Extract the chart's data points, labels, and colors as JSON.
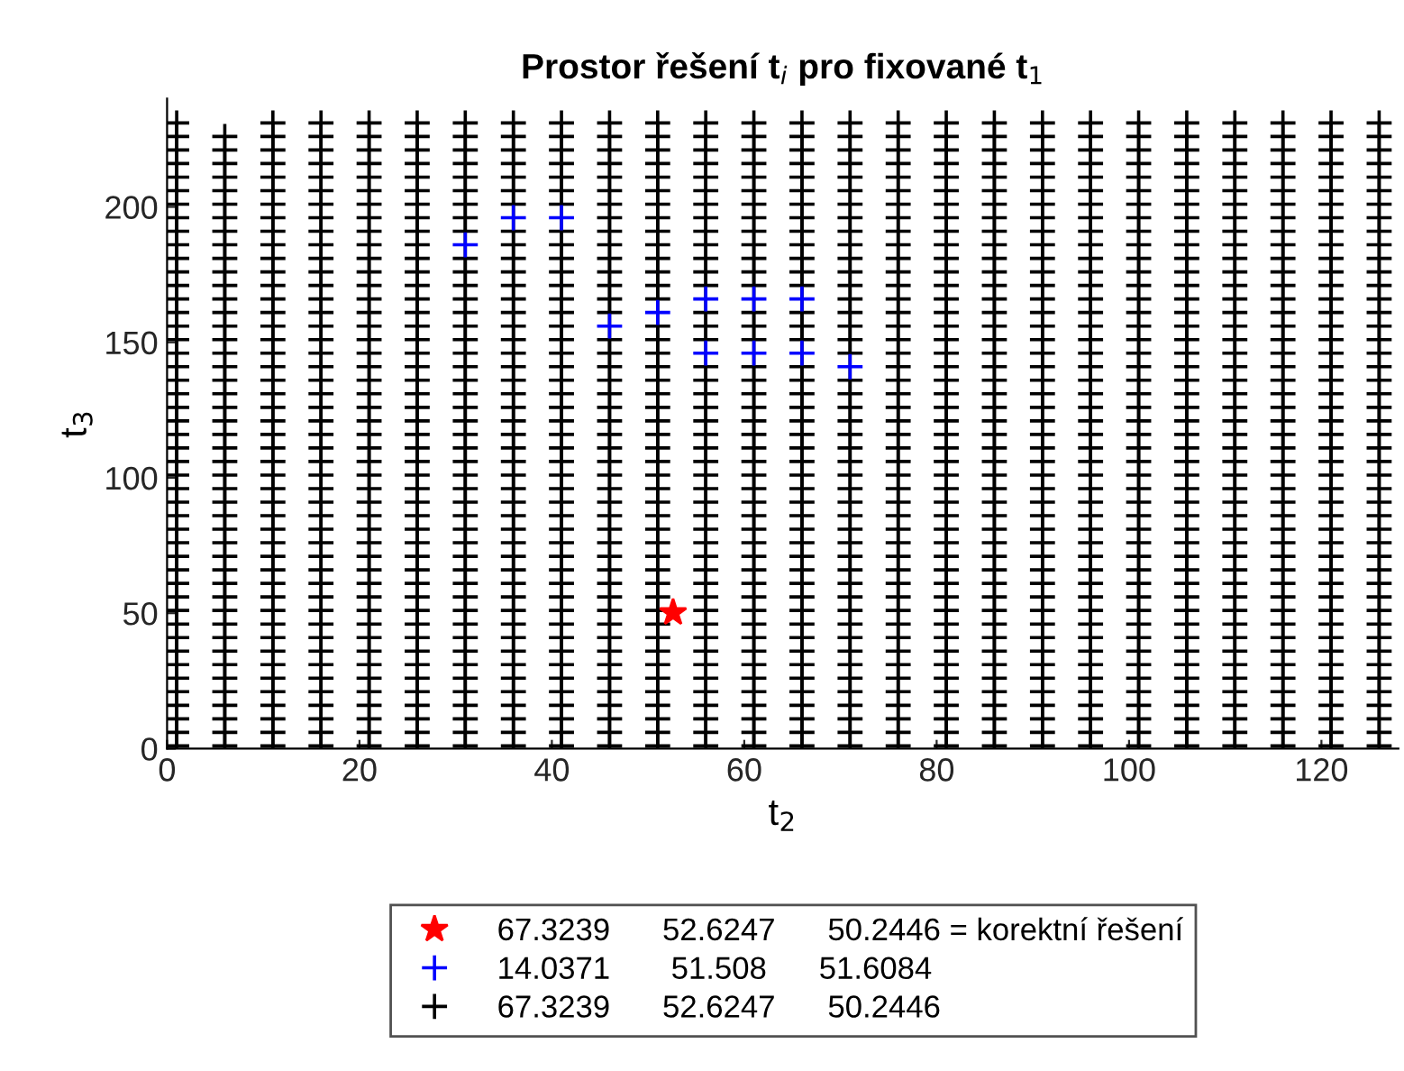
{
  "chart_data": {
    "type": "scatter",
    "title": "Prostor řešení t$_{i}$ pro fixované t$_{1}$",
    "xlabel": "t$_{2}$",
    "ylabel": "t$_{3}$",
    "xlim": [
      0,
      128
    ],
    "xticks": [
      0,
      20,
      40,
      60,
      80,
      100,
      120
    ],
    "ylim": [
      0,
      240
    ],
    "yticks": [
      0,
      50,
      100,
      150,
      200
    ],
    "grid": false,
    "legend": "bottom",
    "series": [
      {
        "name": "67.3239      52.6247      50.2446",
        "color": "#000000",
        "marker": "cross",
        "x": [
          1,
          1,
          1,
          1,
          1,
          1,
          1,
          1,
          1,
          1,
          1,
          1,
          1,
          1,
          1,
          1,
          1,
          1,
          1,
          1,
          1,
          1,
          1,
          1,
          1,
          1,
          1,
          1,
          1,
          1,
          1,
          1,
          1,
          1,
          1,
          1,
          1,
          1,
          1,
          1,
          1,
          1,
          1,
          1,
          1,
          1,
          1,
          6,
          6,
          6,
          6,
          6,
          6,
          6,
          6,
          6,
          6,
          6,
          6,
          6,
          6,
          6,
          6,
          6,
          6,
          6,
          6,
          6,
          6,
          6,
          6,
          6,
          6,
          6,
          6,
          6,
          6,
          6,
          6,
          6,
          6,
          6,
          6,
          6,
          6,
          6,
          6,
          6,
          6,
          6,
          6,
          6,
          6,
          11,
          11,
          11,
          11,
          11,
          11,
          11,
          11,
          11,
          11,
          11,
          11,
          11,
          11,
          11,
          11,
          11,
          11,
          11,
          11,
          11,
          11,
          11,
          11,
          11,
          11,
          11,
          11,
          11,
          11,
          11,
          11,
          11,
          11,
          11,
          11,
          11,
          11,
          11,
          11,
          11,
          11,
          11,
          11,
          11,
          11,
          11,
          16,
          16,
          16,
          16,
          16,
          16,
          16,
          16,
          16,
          16,
          16,
          16,
          16,
          16,
          16,
          16,
          16,
          16,
          16,
          16,
          16,
          16,
          16,
          16,
          16,
          16,
          16,
          16,
          16,
          16,
          16,
          16,
          16,
          16,
          16,
          16,
          16,
          16,
          16,
          16,
          16,
          16,
          16,
          16,
          16,
          16,
          16,
          21,
          21,
          21,
          21,
          21,
          21,
          21,
          21,
          21,
          21,
          21,
          21,
          21,
          21,
          21,
          21,
          21,
          21,
          21,
          21,
          21,
          21,
          21,
          21,
          21,
          21,
          21,
          21,
          21,
          21,
          21,
          21,
          21,
          21,
          21,
          21,
          21,
          21,
          21,
          21,
          21,
          21,
          21,
          21,
          21,
          21,
          21,
          26,
          26,
          26,
          26,
          26,
          26,
          26,
          26,
          26,
          26,
          26,
          26,
          26,
          26,
          26,
          26,
          26,
          26,
          26,
          26,
          26,
          26,
          26,
          26,
          26,
          26,
          26,
          26,
          26,
          26,
          26,
          26,
          26,
          26,
          26,
          26,
          26,
          26,
          26,
          26,
          26,
          26,
          26,
          26,
          26,
          26,
          26,
          31,
          31,
          31,
          31,
          31,
          31,
          31,
          31,
          31,
          31,
          31,
          31,
          31,
          31,
          31,
          31,
          31,
          31,
          31,
          31,
          31,
          31,
          31,
          31,
          31,
          31,
          31,
          31,
          31,
          31,
          31,
          31,
          31,
          31,
          31,
          31,
          31,
          null,
          31,
          31,
          31,
          31,
          31,
          31,
          31,
          31,
          31,
          36,
          36,
          36,
          36,
          36,
          36,
          36,
          36,
          36,
          36,
          36,
          36,
          36,
          36,
          36,
          36,
          36,
          36,
          36,
          36,
          36,
          36,
          36,
          36,
          36,
          36,
          36,
          36,
          36,
          36,
          36,
          36,
          36,
          36,
          36,
          36,
          36,
          36,
          36,
          null,
          36,
          36,
          36,
          36,
          36,
          36,
          36,
          41,
          41,
          41,
          41,
          41,
          41,
          41,
          41,
          41,
          41,
          41,
          41,
          41,
          41,
          41,
          41,
          41,
          41,
          41,
          41,
          41,
          41,
          41,
          41,
          41,
          41,
          41,
          41,
          41,
          41,
          41,
          41,
          41,
          41,
          41,
          41,
          41,
          41,
          41,
          null,
          41,
          41,
          41,
          41,
          41,
          41,
          41,
          46,
          46,
          46,
          46,
          46,
          46,
          46,
          46,
          46,
          46,
          46,
          46,
          46,
          46,
          46,
          46,
          46,
          46,
          46,
          46,
          46,
          46,
          46,
          46,
          46,
          46,
          46,
          46,
          46,
          46,
          46,
          null,
          46,
          46,
          46,
          46,
          46,
          46,
          46,
          46,
          46,
          46,
          46,
          46,
          46,
          46,
          46,
          51,
          51,
          51,
          51,
          51,
          51,
          51,
          51,
          51,
          51,
          51,
          51,
          51,
          51,
          51,
          51,
          51,
          51,
          51,
          51,
          51,
          51,
          51,
          51,
          51,
          51,
          51,
          51,
          51,
          51,
          51,
          51,
          null,
          51,
          51,
          51,
          51,
          51,
          51,
          51,
          51,
          51,
          51,
          51,
          51,
          51,
          51,
          56,
          56,
          56,
          56,
          56,
          56,
          56,
          56,
          56,
          56,
          56,
          56,
          56,
          56,
          56,
          56,
          56,
          56,
          56,
          56,
          56,
          56,
          56,
          56,
          56,
          56,
          56,
          56,
          56,
          null,
          56,
          56,
          56,
          null,
          56,
          56,
          56,
          56,
          56,
          56,
          56,
          56,
          56,
          56,
          56,
          56,
          56,
          61,
          61,
          61,
          61,
          61,
          61,
          61,
          61,
          61,
          61,
          61,
          61,
          61,
          61,
          61,
          61,
          61,
          61,
          61,
          61,
          61,
          61,
          61,
          61,
          61,
          61,
          61,
          61,
          61,
          null,
          61,
          61,
          61,
          null,
          61,
          61,
          61,
          61,
          61,
          61,
          61,
          61,
          61,
          61,
          61,
          61,
          61,
          66,
          66,
          66,
          66,
          66,
          66,
          66,
          66,
          66,
          66,
          66,
          66,
          66,
          66,
          66,
          66,
          66,
          66,
          66,
          66,
          66,
          66,
          66,
          66,
          66,
          66,
          66,
          66,
          66,
          null,
          66,
          66,
          66,
          null,
          66,
          66,
          66,
          66,
          66,
          66,
          66,
          66,
          66,
          66,
          66,
          66,
          66,
          71,
          71,
          71,
          71,
          71,
          71,
          71,
          71,
          71,
          71,
          71,
          71,
          71,
          71,
          71,
          71,
          71,
          71,
          71,
          71,
          71,
          71,
          71,
          71,
          71,
          71,
          71,
          71,
          null,
          71,
          71,
          71,
          71,
          71,
          71,
          71,
          71,
          71,
          71,
          71,
          71,
          71,
          71,
          71,
          71,
          71,
          71,
          76,
          76,
          76,
          76,
          76,
          76,
          76,
          76,
          76,
          76,
          76,
          76,
          76,
          76,
          76,
          76,
          76,
          76,
          76,
          76,
          76,
          76,
          76,
          76,
          76,
          76,
          76,
          76,
          76,
          76,
          76,
          76,
          76,
          76,
          76,
          76,
          76,
          76,
          76,
          76,
          76,
          76,
          76,
          76,
          76,
          76,
          76,
          81,
          81,
          81,
          81,
          81,
          81,
          81,
          81,
          81,
          81,
          81,
          81,
          81,
          81,
          81,
          81,
          81,
          81,
          81,
          81,
          81,
          81,
          81,
          81,
          81,
          81,
          81,
          81,
          81,
          81,
          81,
          81,
          81,
          81,
          81,
          81,
          81,
          81,
          81,
          81,
          81,
          81,
          81,
          81,
          81,
          81,
          81,
          86,
          86,
          86,
          86,
          86,
          86,
          86,
          86,
          86,
          86,
          86,
          86,
          86,
          86,
          86,
          86,
          86,
          86,
          86,
          86,
          86,
          86,
          86,
          86,
          86,
          86,
          86,
          86,
          86,
          86,
          86,
          86,
          86,
          86,
          86,
          86,
          86,
          86,
          86,
          86,
          86,
          86,
          86,
          86,
          86,
          86,
          86,
          91,
          91,
          91,
          91,
          91,
          91,
          91,
          91,
          91,
          91,
          91,
          91,
          91,
          91,
          91,
          91,
          91,
          91,
          91,
          91,
          91,
          91,
          91,
          91,
          91,
          91,
          91,
          91,
          91,
          91,
          91,
          91,
          91,
          91,
          91,
          91,
          91,
          91,
          91,
          91,
          91,
          91,
          91,
          91,
          91,
          91,
          91,
          96,
          96,
          96,
          96,
          96,
          96,
          96,
          96,
          96,
          96,
          96,
          96,
          96,
          96,
          96,
          96,
          96,
          96,
          96,
          96,
          96,
          96,
          96,
          96,
          96,
          96,
          96,
          96,
          96,
          96,
          96,
          96,
          96,
          96,
          96,
          96,
          96,
          96,
          96,
          96,
          96,
          96,
          96,
          96,
          96,
          96,
          96,
          101,
          101,
          101,
          101,
          101,
          101,
          101,
          101,
          101,
          101,
          101,
          101,
          101,
          101,
          101,
          101,
          101,
          101,
          101,
          101,
          101,
          101,
          101,
          101,
          101,
          101,
          101,
          101,
          101,
          101,
          101,
          101,
          101,
          101,
          101,
          101,
          101,
          101,
          101,
          101,
          101,
          101,
          101,
          101,
          101,
          101,
          101,
          106,
          106,
          106,
          106,
          106,
          106,
          106,
          106,
          106,
          106,
          106,
          106,
          106,
          106,
          106,
          106,
          106,
          106,
          106,
          106,
          106,
          106,
          106,
          106,
          106,
          106,
          106,
          106,
          106,
          106,
          106,
          106,
          106,
          106,
          106,
          106,
          106,
          106,
          106,
          106,
          106,
          106,
          106,
          106,
          106,
          106,
          106,
          111,
          111,
          111,
          111,
          111,
          111,
          111,
          111,
          111,
          111,
          111,
          111,
          111,
          111,
          111,
          111,
          111,
          111,
          111,
          111,
          111,
          111,
          111,
          111,
          111,
          111,
          111,
          111,
          111,
          111,
          111,
          111,
          111,
          111,
          111,
          111,
          111,
          111,
          111,
          111,
          111,
          111,
          111,
          111,
          111,
          111,
          111,
          116,
          116,
          116,
          116,
          116,
          116,
          116,
          116,
          116,
          116,
          116,
          116,
          116,
          116,
          116,
          116,
          116,
          116,
          116,
          116,
          116,
          116,
          116,
          116,
          116,
          116,
          116,
          116,
          116,
          116,
          116,
          116,
          116,
          116,
          116,
          116,
          116,
          116,
          116,
          116,
          116,
          116,
          116,
          116,
          116,
          116,
          116,
          121,
          121,
          121,
          121,
          121,
          121,
          121,
          121,
          121,
          121,
          121,
          121,
          121,
          121,
          121,
          121,
          121,
          121,
          121,
          121,
          121,
          121,
          121,
          121,
          121,
          121,
          121,
          121,
          121,
          121,
          121,
          121,
          121,
          121,
          121,
          121,
          121,
          121,
          121,
          121,
          121,
          121,
          121,
          121,
          121,
          121,
          121,
          126,
          126,
          126,
          126,
          126,
          126,
          126,
          126,
          126,
          126,
          126,
          126,
          126,
          126,
          126,
          126,
          126,
          126,
          126,
          126,
          126,
          126,
          126,
          126,
          126,
          126,
          126,
          126,
          126,
          126,
          126,
          126,
          126,
          126,
          126,
          126,
          126,
          126,
          126,
          126,
          126,
          126,
          126,
          126,
          126,
          126,
          126
        ],
        "values": [
          1,
          6,
          11,
          16,
          21,
          26,
          31,
          36,
          41,
          46,
          51,
          56,
          61,
          66,
          71,
          76,
          81,
          86,
          91,
          96,
          101,
          106,
          111,
          116,
          121,
          126,
          131,
          136,
          141,
          146,
          151,
          156,
          161,
          166,
          171,
          176,
          181,
          186,
          191,
          196,
          201,
          206,
          211,
          216,
          221,
          226,
          231,
          1,
          6,
          11,
          16,
          21,
          26,
          31,
          36,
          41,
          46,
          51,
          56,
          61,
          66,
          71,
          76,
          81,
          86,
          91,
          96,
          101,
          106,
          111,
          116,
          121,
          126,
          131,
          136,
          141,
          146,
          151,
          156,
          161,
          166,
          171,
          176,
          181,
          186,
          191,
          196,
          201,
          206,
          211,
          216,
          221,
          226,
          1,
          6,
          11,
          16,
          21,
          26,
          31,
          36,
          41,
          46,
          51,
          56,
          61,
          66,
          71,
          76,
          81,
          86,
          91,
          96,
          101,
          106,
          111,
          116,
          121,
          126,
          131,
          136,
          141,
          146,
          151,
          156,
          161,
          166,
          171,
          176,
          181,
          186,
          191,
          196,
          201,
          206,
          211,
          216,
          221,
          226,
          231,
          1,
          6,
          11,
          16,
          21,
          26,
          31,
          36,
          41,
          46,
          51,
          56,
          61,
          66,
          71,
          76,
          81,
          86,
          91,
          96,
          101,
          106,
          111,
          116,
          121,
          126,
          131,
          136,
          141,
          146,
          151,
          156,
          161,
          166,
          171,
          176,
          181,
          186,
          191,
          196,
          201,
          206,
          211,
          216,
          221,
          226,
          231,
          1,
          6,
          11,
          16,
          21,
          26,
          31,
          36,
          41,
          46,
          51,
          56,
          61,
          66,
          71,
          76,
          81,
          86,
          91,
          96,
          101,
          106,
          111,
          116,
          121,
          126,
          131,
          136,
          141,
          146,
          151,
          156,
          161,
          166,
          171,
          176,
          181,
          186,
          191,
          196,
          201,
          206,
          211,
          216,
          221,
          226,
          231,
          1,
          6,
          11,
          16,
          21,
          26,
          31,
          36,
          41,
          46,
          51,
          56,
          61,
          66,
          71,
          76,
          81,
          86,
          91,
          96,
          101,
          106,
          111,
          116,
          121,
          126,
          131,
          136,
          141,
          146,
          151,
          156,
          161,
          166,
          171,
          176,
          181,
          186,
          191,
          196,
          201,
          206,
          211,
          216,
          221,
          226,
          231,
          1,
          6,
          11,
          16,
          21,
          26,
          31,
          36,
          41,
          46,
          51,
          56,
          61,
          66,
          71,
          76,
          81,
          86,
          91,
          96,
          101,
          106,
          111,
          116,
          121,
          126,
          131,
          136,
          141,
          146,
          151,
          156,
          161,
          166,
          171,
          176,
          181,
          null,
          191,
          196,
          201,
          206,
          211,
          216,
          221,
          226,
          231,
          1,
          6,
          11,
          16,
          21,
          26,
          31,
          36,
          41,
          46,
          51,
          56,
          61,
          66,
          71,
          76,
          81,
          86,
          91,
          96,
          101,
          106,
          111,
          116,
          121,
          126,
          131,
          136,
          141,
          146,
          151,
          156,
          161,
          166,
          171,
          176,
          181,
          186,
          191,
          null,
          201,
          206,
          211,
          216,
          221,
          226,
          231,
          1,
          6,
          11,
          16,
          21,
          26,
          31,
          36,
          41,
          46,
          51,
          56,
          61,
          66,
          71,
          76,
          81,
          86,
          91,
          96,
          101,
          106,
          111,
          116,
          121,
          126,
          131,
          136,
          141,
          146,
          151,
          156,
          161,
          166,
          171,
          176,
          181,
          186,
          191,
          null,
          201,
          206,
          211,
          216,
          221,
          226,
          231,
          1,
          6,
          11,
          16,
          21,
          26,
          31,
          36,
          41,
          46,
          51,
          56,
          61,
          66,
          71,
          76,
          81,
          86,
          91,
          96,
          101,
          106,
          111,
          116,
          121,
          126,
          131,
          136,
          141,
          146,
          151,
          null,
          161,
          166,
          171,
          176,
          181,
          186,
          191,
          196,
          201,
          206,
          211,
          216,
          221,
          226,
          231,
          1,
          6,
          11,
          16,
          21,
          26,
          31,
          36,
          41,
          46,
          51,
          56,
          61,
          66,
          71,
          76,
          81,
          86,
          91,
          96,
          101,
          106,
          111,
          116,
          121,
          126,
          131,
          136,
          141,
          146,
          151,
          156,
          null,
          166,
          171,
          176,
          181,
          186,
          191,
          196,
          201,
          206,
          211,
          216,
          221,
          226,
          231,
          1,
          6,
          11,
          16,
          21,
          26,
          31,
          36,
          41,
          46,
          51,
          56,
          61,
          66,
          71,
          76,
          81,
          86,
          91,
          96,
          101,
          106,
          111,
          116,
          121,
          126,
          131,
          136,
          141,
          null,
          151,
          156,
          161,
          null,
          171,
          176,
          181,
          186,
          191,
          196,
          201,
          206,
          211,
          216,
          221,
          226,
          231,
          1,
          6,
          11,
          16,
          21,
          26,
          31,
          36,
          41,
          46,
          51,
          56,
          61,
          66,
          71,
          76,
          81,
          86,
          91,
          96,
          101,
          106,
          111,
          116,
          121,
          126,
          131,
          136,
          141,
          null,
          151,
          156,
          161,
          null,
          171,
          176,
          181,
          186,
          191,
          196,
          201,
          206,
          211,
          216,
          221,
          226,
          231,
          1,
          6,
          11,
          16,
          21,
          26,
          31,
          36,
          41,
          46,
          51,
          56,
          61,
          66,
          71,
          76,
          81,
          86,
          91,
          96,
          101,
          106,
          111,
          116,
          121,
          126,
          131,
          136,
          141,
          null,
          151,
          156,
          161,
          null,
          171,
          176,
          181,
          186,
          191,
          196,
          201,
          206,
          211,
          216,
          221,
          226,
          231,
          1,
          6,
          11,
          16,
          21,
          26,
          31,
          36,
          41,
          46,
          51,
          56,
          61,
          66,
          71,
          76,
          81,
          86,
          91,
          96,
          101,
          106,
          111,
          116,
          121,
          126,
          131,
          136,
          null,
          146,
          151,
          156,
          161,
          166,
          171,
          176,
          181,
          186,
          191,
          196,
          201,
          206,
          211,
          216,
          221,
          226,
          231,
          1,
          6,
          11,
          16,
          21,
          26,
          31,
          36,
          41,
          46,
          51,
          56,
          61,
          66,
          71,
          76,
          81,
          86,
          91,
          96,
          101,
          106,
          111,
          116,
          121,
          126,
          131,
          136,
          141,
          146,
          151,
          156,
          161,
          166,
          171,
          176,
          181,
          186,
          191,
          196,
          201,
          206,
          211,
          216,
          221,
          226,
          231,
          1,
          6,
          11,
          16,
          21,
          26,
          31,
          36,
          41,
          46,
          51,
          56,
          61,
          66,
          71,
          76,
          81,
          86,
          91,
          96,
          101,
          106,
          111,
          116,
          121,
          126,
          131,
          136,
          141,
          146,
          151,
          156,
          161,
          166,
          171,
          176,
          181,
          186,
          191,
          196,
          201,
          206,
          211,
          216,
          221,
          226,
          231,
          1,
          6,
          11,
          16,
          21,
          26,
          31,
          36,
          41,
          46,
          51,
          56,
          61,
          66,
          71,
          76,
          81,
          86,
          91,
          96,
          101,
          106,
          111,
          116,
          121,
          126,
          131,
          136,
          141,
          146,
          151,
          156,
          161,
          166,
          171,
          176,
          181,
          186,
          191,
          196,
          201,
          206,
          211,
          216,
          221,
          226,
          231,
          1,
          6,
          11,
          16,
          21,
          26,
          31,
          36,
          41,
          46,
          51,
          56,
          61,
          66,
          71,
          76,
          81,
          86,
          91,
          96,
          101,
          106,
          111,
          116,
          121,
          126,
          131,
          136,
          141,
          146,
          151,
          156,
          161,
          166,
          171,
          176,
          181,
          186,
          191,
          196,
          201,
          206,
          211,
          216,
          221,
          226,
          231,
          1,
          6,
          11,
          16,
          21,
          26,
          31,
          36,
          41,
          46,
          51,
          56,
          61,
          66,
          71,
          76,
          81,
          86,
          91,
          96,
          101,
          106,
          111,
          116,
          121,
          126,
          131,
          136,
          141,
          146,
          151,
          156,
          161,
          166,
          171,
          176,
          181,
          186,
          191,
          196,
          201,
          206,
          211,
          216,
          221,
          226,
          231,
          1,
          6,
          11,
          16,
          21,
          26,
          31,
          36,
          41,
          46,
          51,
          56,
          61,
          66,
          71,
          76,
          81,
          86,
          91,
          96,
          101,
          106,
          111,
          116,
          121,
          126,
          131,
          136,
          141,
          146,
          151,
          156,
          161,
          166,
          171,
          176,
          181,
          186,
          191,
          196,
          201,
          206,
          211,
          216,
          221,
          226,
          231,
          1,
          6,
          11,
          16,
          21,
          26,
          31,
          36,
          41,
          46,
          51,
          56,
          61,
          66,
          71,
          76,
          81,
          86,
          91,
          96,
          101,
          106,
          111,
          116,
          121,
          126,
          131,
          136,
          141,
          146,
          151,
          156,
          161,
          166,
          171,
          176,
          181,
          186,
          191,
          196,
          201,
          206,
          211,
          216,
          221,
          226,
          231,
          1,
          6,
          11,
          16,
          21,
          26,
          31,
          36,
          41,
          46,
          51,
          56,
          61,
          66,
          71,
          76,
          81,
          86,
          91,
          96,
          101,
          106,
          111,
          116,
          121,
          126,
          131,
          136,
          141,
          146,
          151,
          156,
          161,
          166,
          171,
          176,
          181,
          186,
          191,
          196,
          201,
          206,
          211,
          216,
          221,
          226,
          231,
          1,
          6,
          11,
          16,
          21,
          26,
          31,
          36,
          41,
          46,
          51,
          56,
          61,
          66,
          71,
          76,
          81,
          86,
          91,
          96,
          101,
          106,
          111,
          116,
          121,
          126,
          131,
          136,
          141,
          146,
          151,
          156,
          161,
          166,
          171,
          176,
          181,
          186,
          191,
          196,
          201,
          206,
          211,
          216,
          221,
          226,
          231,
          1,
          6,
          11,
          16,
          21,
          26,
          31,
          36,
          41,
          46,
          51,
          56,
          61,
          66,
          71,
          76,
          81,
          86,
          91,
          96,
          101,
          106,
          111,
          116,
          121,
          126,
          131,
          136,
          141,
          146,
          151,
          156,
          161,
          166,
          171,
          176,
          181,
          186,
          191,
          196,
          201,
          206,
          211,
          216,
          221,
          226,
          231,
          1,
          6,
          11,
          16,
          21,
          26,
          31,
          36,
          41,
          46,
          51,
          56,
          61,
          66,
          71,
          76,
          81,
          86,
          91,
          96,
          101,
          106,
          111,
          116,
          121,
          126,
          131,
          136,
          141,
          146,
          151,
          156,
          161,
          166,
          171,
          176,
          181,
          186,
          191,
          196,
          201,
          206,
          211,
          216,
          221,
          226,
          231
        ]
      },
      {
        "name": "14.0371       51.508      51.6084",
        "color": "#0000ff",
        "marker": "cross",
        "x": [
          31,
          36,
          41,
          46,
          51,
          56,
          56,
          61,
          61,
          66,
          66,
          71
        ],
        "values": [
          186,
          196,
          196,
          156,
          161,
          166,
          146,
          166,
          146,
          166,
          146,
          141
        ]
      },
      {
        "name": "67.3239      52.6247      50.2446 = korektní řešení",
        "color": "#ff0000",
        "marker": "star",
        "x": [
          52.6
        ],
        "values": [
          50.2
        ]
      }
    ]
  }
}
